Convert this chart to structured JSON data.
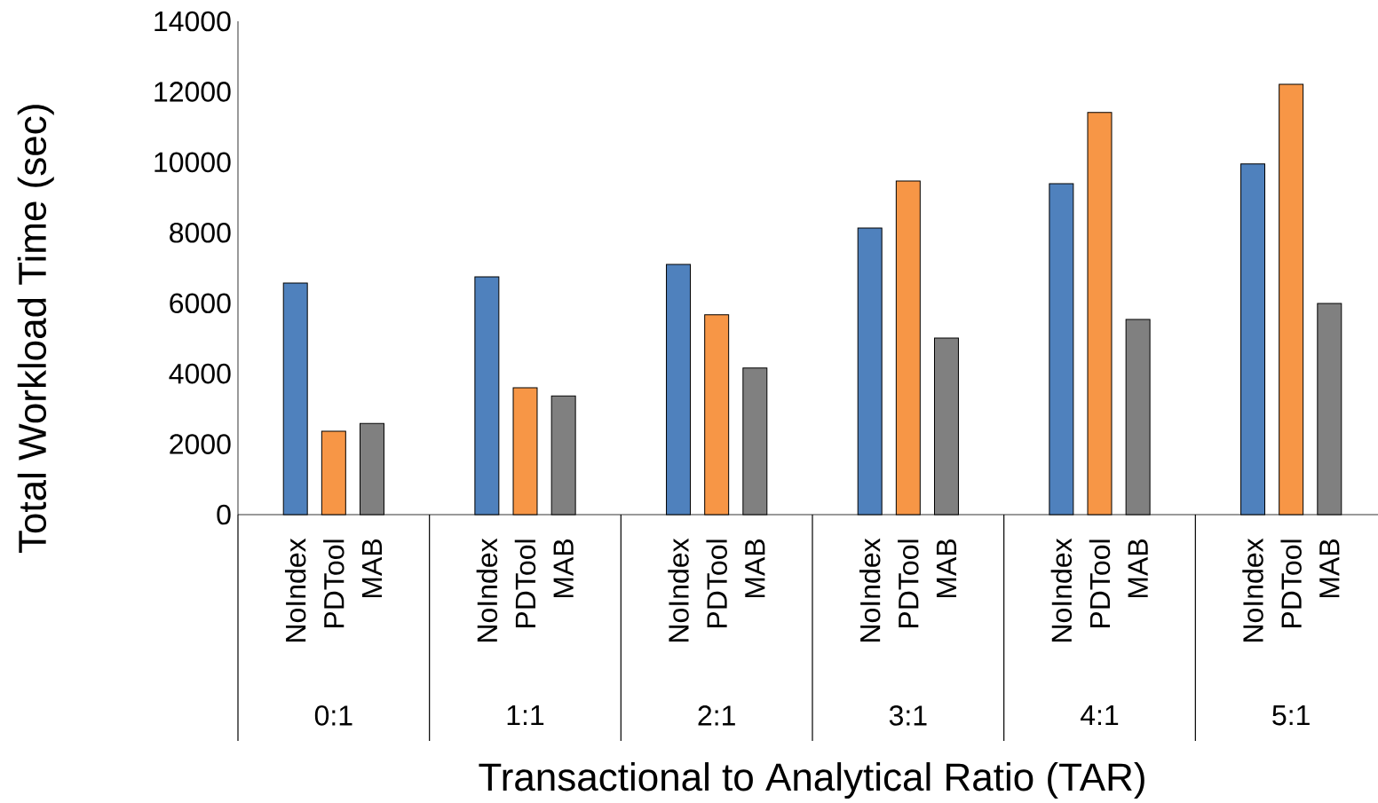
{
  "chart_data": {
    "type": "bar",
    "categories": [
      "0:1",
      "1:1",
      "2:1",
      "3:1",
      "4:1",
      "5:1"
    ],
    "series": [
      {
        "name": "NoIndex",
        "color": "#4f81bd",
        "values": [
          6570,
          6750,
          7100,
          8130,
          9390,
          9950
        ]
      },
      {
        "name": "PDTool",
        "color": "#f79646",
        "values": [
          2370,
          3600,
          5670,
          9470,
          11410,
          12210
        ]
      },
      {
        "name": "MAB",
        "color": "#808080",
        "values": [
          2590,
          3370,
          4160,
          5010,
          5540,
          5990
        ]
      }
    ],
    "ylim": [
      0,
      14000
    ],
    "yticks": [
      0,
      2000,
      4000,
      6000,
      8000,
      10000,
      12000,
      14000
    ],
    "xlabel": "Transactional to Analytical Ratio (TAR)",
    "ylabel": "Total Workload Time (sec)"
  }
}
